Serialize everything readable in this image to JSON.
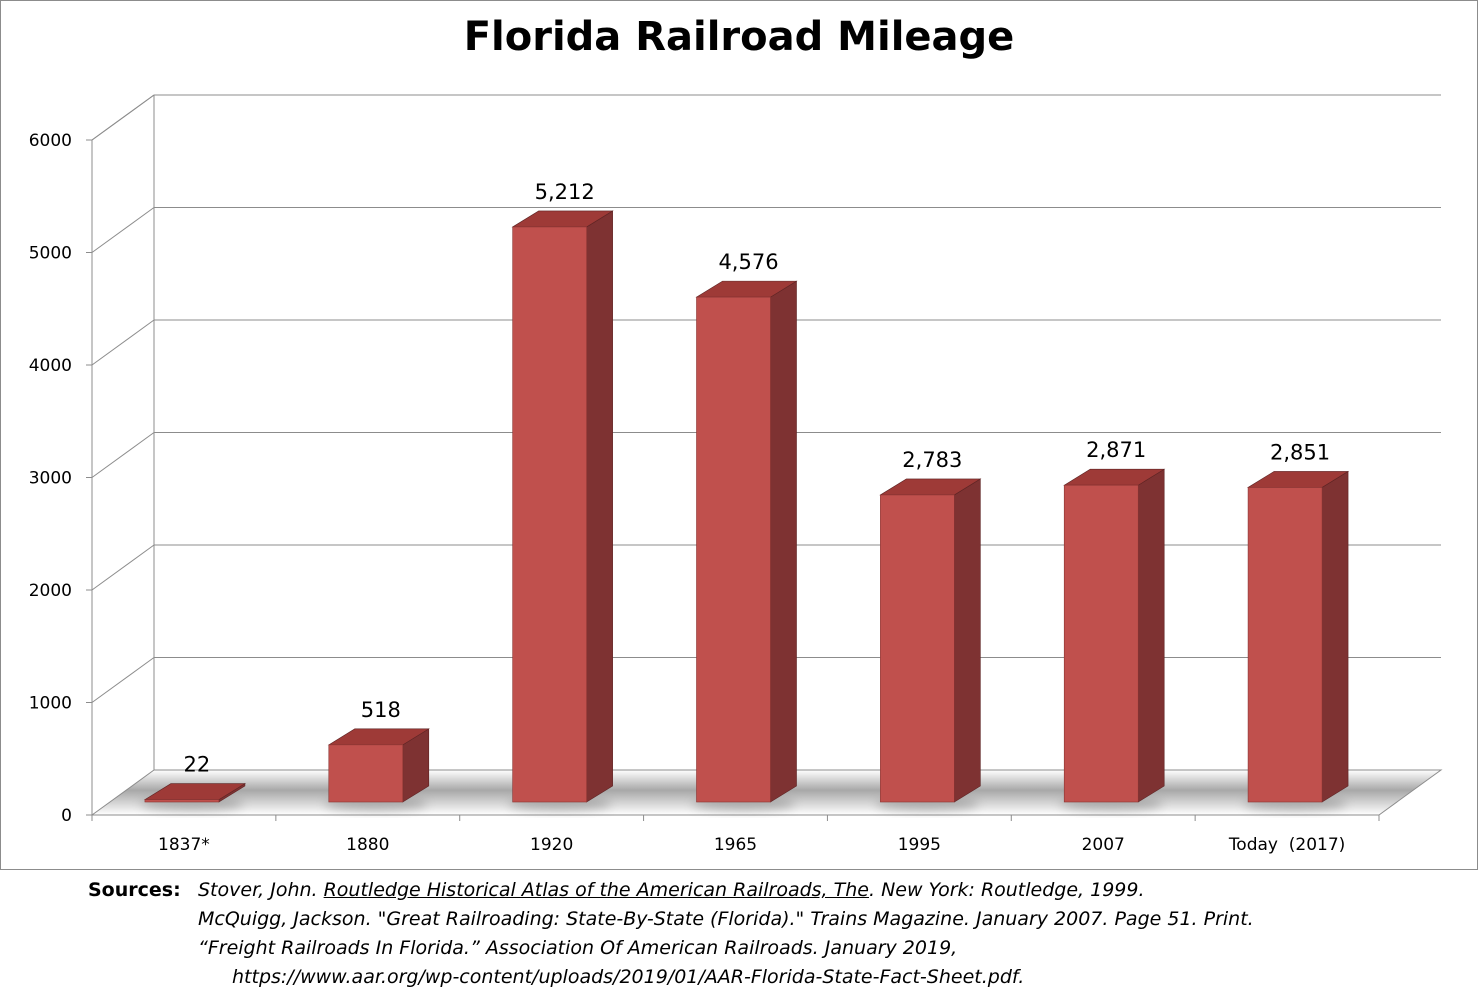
{
  "chart_data": {
    "type": "bar",
    "title": "Florida Railroad Mileage",
    "categories": [
      "1837*",
      "1880",
      "1920",
      "1965",
      "1995",
      "2007",
      "Today  (2017)"
    ],
    "values": [
      22,
      518,
      5212,
      4576,
      2783,
      2871,
      2851
    ],
    "data_labels": [
      "22",
      "518",
      "5,212",
      "4,576",
      "2,783",
      "2,871",
      "2,851"
    ],
    "y_ticks": [
      0,
      1000,
      2000,
      3000,
      4000,
      5000,
      6000
    ],
    "ylim": [
      0,
      6000
    ],
    "xlabel": "",
    "ylabel": "",
    "grid": true,
    "legend": "none",
    "style": "3d-column",
    "colors": {
      "bar_front": "#c0504d",
      "bar_side": "#7e3232",
      "bar_top": "#9e3a37"
    }
  },
  "sources": {
    "label": "Sources:",
    "lines": [
      {
        "prefix": "Stover, John. ",
        "title": "Routledge Historical Atlas of the American Railroads, The",
        "suffix": ". New York: Routledge, 1999."
      },
      {
        "text": "McQuigg, Jackson. \"Great Railroading: State-By-State (Florida).\" Trains Magazine. January 2007. Page 51. Print."
      },
      {
        "text": "“Freight Railroads In Florida.” Association Of American Railroads. January 2019,"
      },
      {
        "text": "https://www.aar.org/wp-content/uploads/2019/01/AAR-Florida-State-Fact-Sheet.pdf."
      }
    ]
  }
}
